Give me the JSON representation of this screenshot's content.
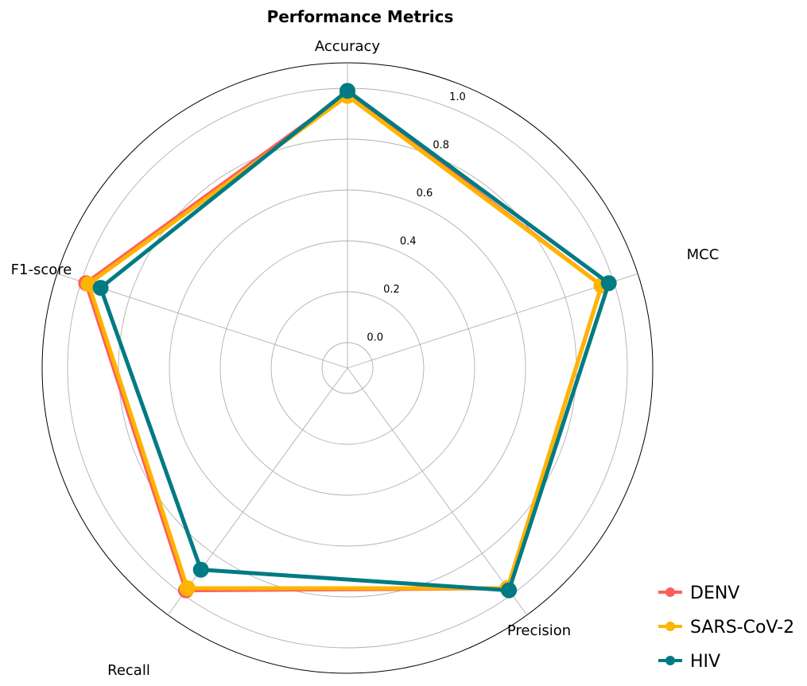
{
  "chart_data": {
    "type": "radar",
    "title": "Performance Metrics",
    "axes": [
      "Accuracy",
      "MCC",
      "Precision",
      "Recall",
      "F1-score"
    ],
    "rlim": [
      -0.1,
      1.1
    ],
    "rticks": [
      0.0,
      0.2,
      0.4,
      0.6,
      0.8,
      1.0
    ],
    "rtick_labels": [
      "0.0",
      "0.2",
      "0.4",
      "0.6",
      "0.8",
      "1.0"
    ],
    "grid": true,
    "legend_position": "bottom-right",
    "series": [
      {
        "name": "DENV",
        "color": "#FF5E5B",
        "values": [
          0.98,
          0.95,
          0.97,
          0.98,
          0.98
        ]
      },
      {
        "name": "SARS-CoV-2",
        "color": "#FFB400",
        "values": [
          0.97,
          0.95,
          0.97,
          0.97,
          0.97
        ]
      },
      {
        "name": "HIV",
        "color": "#007B83",
        "values": [
          0.99,
          0.98,
          0.98,
          0.88,
          0.92
        ]
      }
    ]
  }
}
